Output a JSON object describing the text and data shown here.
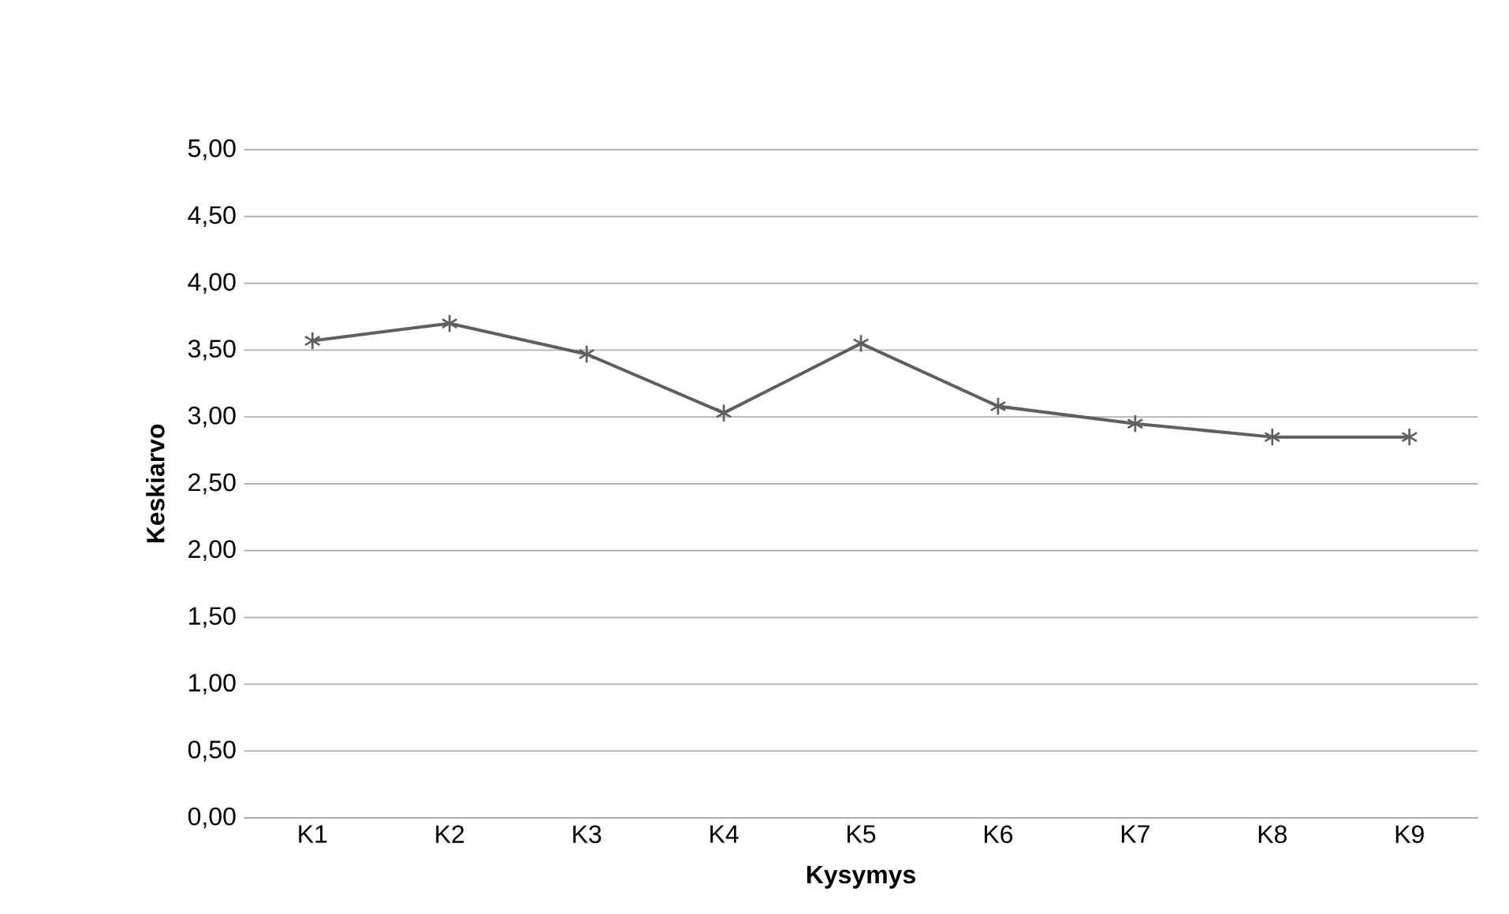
{
  "chart_data": {
    "type": "line",
    "xlabel": "Kysymys",
    "ylabel": "Keskiarvo",
    "categories": [
      "K1",
      "K2",
      "K3",
      "K4",
      "K5",
      "K6",
      "K7",
      "K8",
      "K9"
    ],
    "series": [
      {
        "color": "#5f5f5f",
        "values": [
          3.57,
          3.7,
          3.47,
          3.03,
          3.55,
          3.08,
          2.95,
          2.85,
          2.85
        ]
      }
    ],
    "ylim": [
      0,
      5
    ],
    "yticks": [
      {
        "value": 0,
        "label": "0,00"
      },
      {
        "value": 0.5,
        "label": "0,50"
      },
      {
        "value": 1,
        "label": "1,00"
      },
      {
        "value": 1.5,
        "label": "1,50"
      },
      {
        "value": 2,
        "label": "2,00"
      },
      {
        "value": 2.5,
        "label": "2,50"
      },
      {
        "value": 3,
        "label": "3,00"
      },
      {
        "value": 3.5,
        "label": "3,50"
      },
      {
        "value": 4,
        "label": "4,00"
      },
      {
        "value": 4.5,
        "label": "4,50"
      },
      {
        "value": 5,
        "label": "5,00"
      }
    ],
    "grid": "y",
    "marker": "cross",
    "line_style": "solid"
  }
}
